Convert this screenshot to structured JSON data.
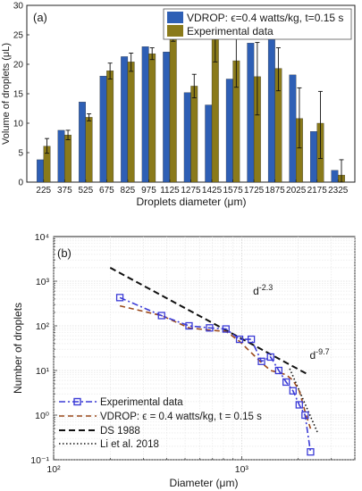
{
  "chart_data": [
    {
      "type": "bar",
      "panel_label": "(a)",
      "xlabel": "Droplets diameter (μm)",
      "ylabel": "Volume of droplets (μL)",
      "ylim": [
        0,
        30
      ],
      "yticks": [
        0,
        5,
        10,
        15,
        20,
        25,
        30
      ],
      "grid": false,
      "legend_position": "top-right",
      "categories": [
        "225",
        "375",
        "525",
        "675",
        "825",
        "975",
        "1125",
        "1275",
        "1425",
        "1575",
        "1725",
        "1875",
        "2025",
        "2175",
        "2325"
      ],
      "series": [
        {
          "name": "VDROP: ϵ=0.4 watts/kg, t=0.15 s",
          "color": "#2e5fb5",
          "values": [
            3.8,
            8.8,
            13.6,
            18.0,
            21.3,
            23.0,
            22.1,
            15.2,
            13.1,
            17.5,
            23.6,
            24.8,
            18.2,
            8.6,
            2.0
          ]
        },
        {
          "name": "Experimental data",
          "color": "#8a7a1a",
          "values": [
            6.1,
            8.0,
            11.0,
            18.9,
            20.4,
            21.8,
            26.3,
            16.3,
            24.9,
            20.6,
            17.9,
            19.3,
            10.8,
            10.0,
            1.2
          ],
          "err_low": [
            1.2,
            0.8,
            0.6,
            1.4,
            1.6,
            1.0,
            2.4,
            2.0,
            4.5,
            4.5,
            6.5,
            3.8,
            5.0,
            6.0,
            1.2
          ],
          "err_high": [
            1.3,
            0.8,
            0.6,
            1.3,
            1.5,
            1.0,
            2.2,
            2.0,
            3.8,
            5.0,
            5.8,
            3.5,
            5.2,
            5.4,
            2.6
          ]
        }
      ]
    },
    {
      "type": "line",
      "panel_label": "(b)",
      "xlabel": "Diameter (μm)",
      "ylabel": "Number of droplets",
      "xscale": "log",
      "yscale": "log",
      "xlim": [
        100,
        4000
      ],
      "ylim": [
        0.1,
        10000
      ],
      "xticks": [
        "10²",
        "10³"
      ],
      "yticks": [
        "10⁻¹",
        "10⁰",
        "10¹",
        "10²",
        "10³",
        "10⁴"
      ],
      "grid": true,
      "legend_position": "bottom-left",
      "annotations": [
        {
          "text": "d",
          "sup": "-2.3",
          "x": 1150,
          "y": 500
        },
        {
          "text": "d",
          "sup": "-9.7",
          "x": 2300,
          "y": 18
        }
      ],
      "series": [
        {
          "name": "Experimental data",
          "color": "#3b3bd6",
          "style": "dashdot-square",
          "x": [
            225,
            375,
            525,
            675,
            825,
            975,
            1125,
            1275,
            1425,
            1575,
            1725,
            1875,
            2025,
            2175,
            2325
          ],
          "y": [
            430,
            170,
            100,
            90,
            85,
            50,
            50,
            16,
            20,
            10,
            5.5,
            3.5,
            1.7,
            1.0,
            0.15
          ]
        },
        {
          "name": "VDROP: ϵ = 0.4 watts/kg, t = 0.15 s",
          "color": "#9b4a1c",
          "style": "dashed",
          "x": [
            225,
            375,
            525,
            675,
            825,
            975,
            1125,
            1275,
            1425,
            1575,
            1725,
            1875,
            2025,
            2175,
            2325
          ],
          "y": [
            280,
            170,
            90,
            80,
            75,
            45,
            25,
            15,
            10,
            9,
            8,
            6,
            3.5,
            1.2,
            0.5
          ]
        },
        {
          "name": "DS 1988",
          "color": "#111111",
          "style": "dashed-thick",
          "x": [
            200,
            2200
          ],
          "y": [
            2000,
            8.6
          ]
        },
        {
          "name": "Li et al. 2018",
          "color": "#111111",
          "style": "dotted",
          "x": [
            1800,
            2550
          ],
          "y": [
            11,
            0.38
          ]
        }
      ]
    }
  ]
}
